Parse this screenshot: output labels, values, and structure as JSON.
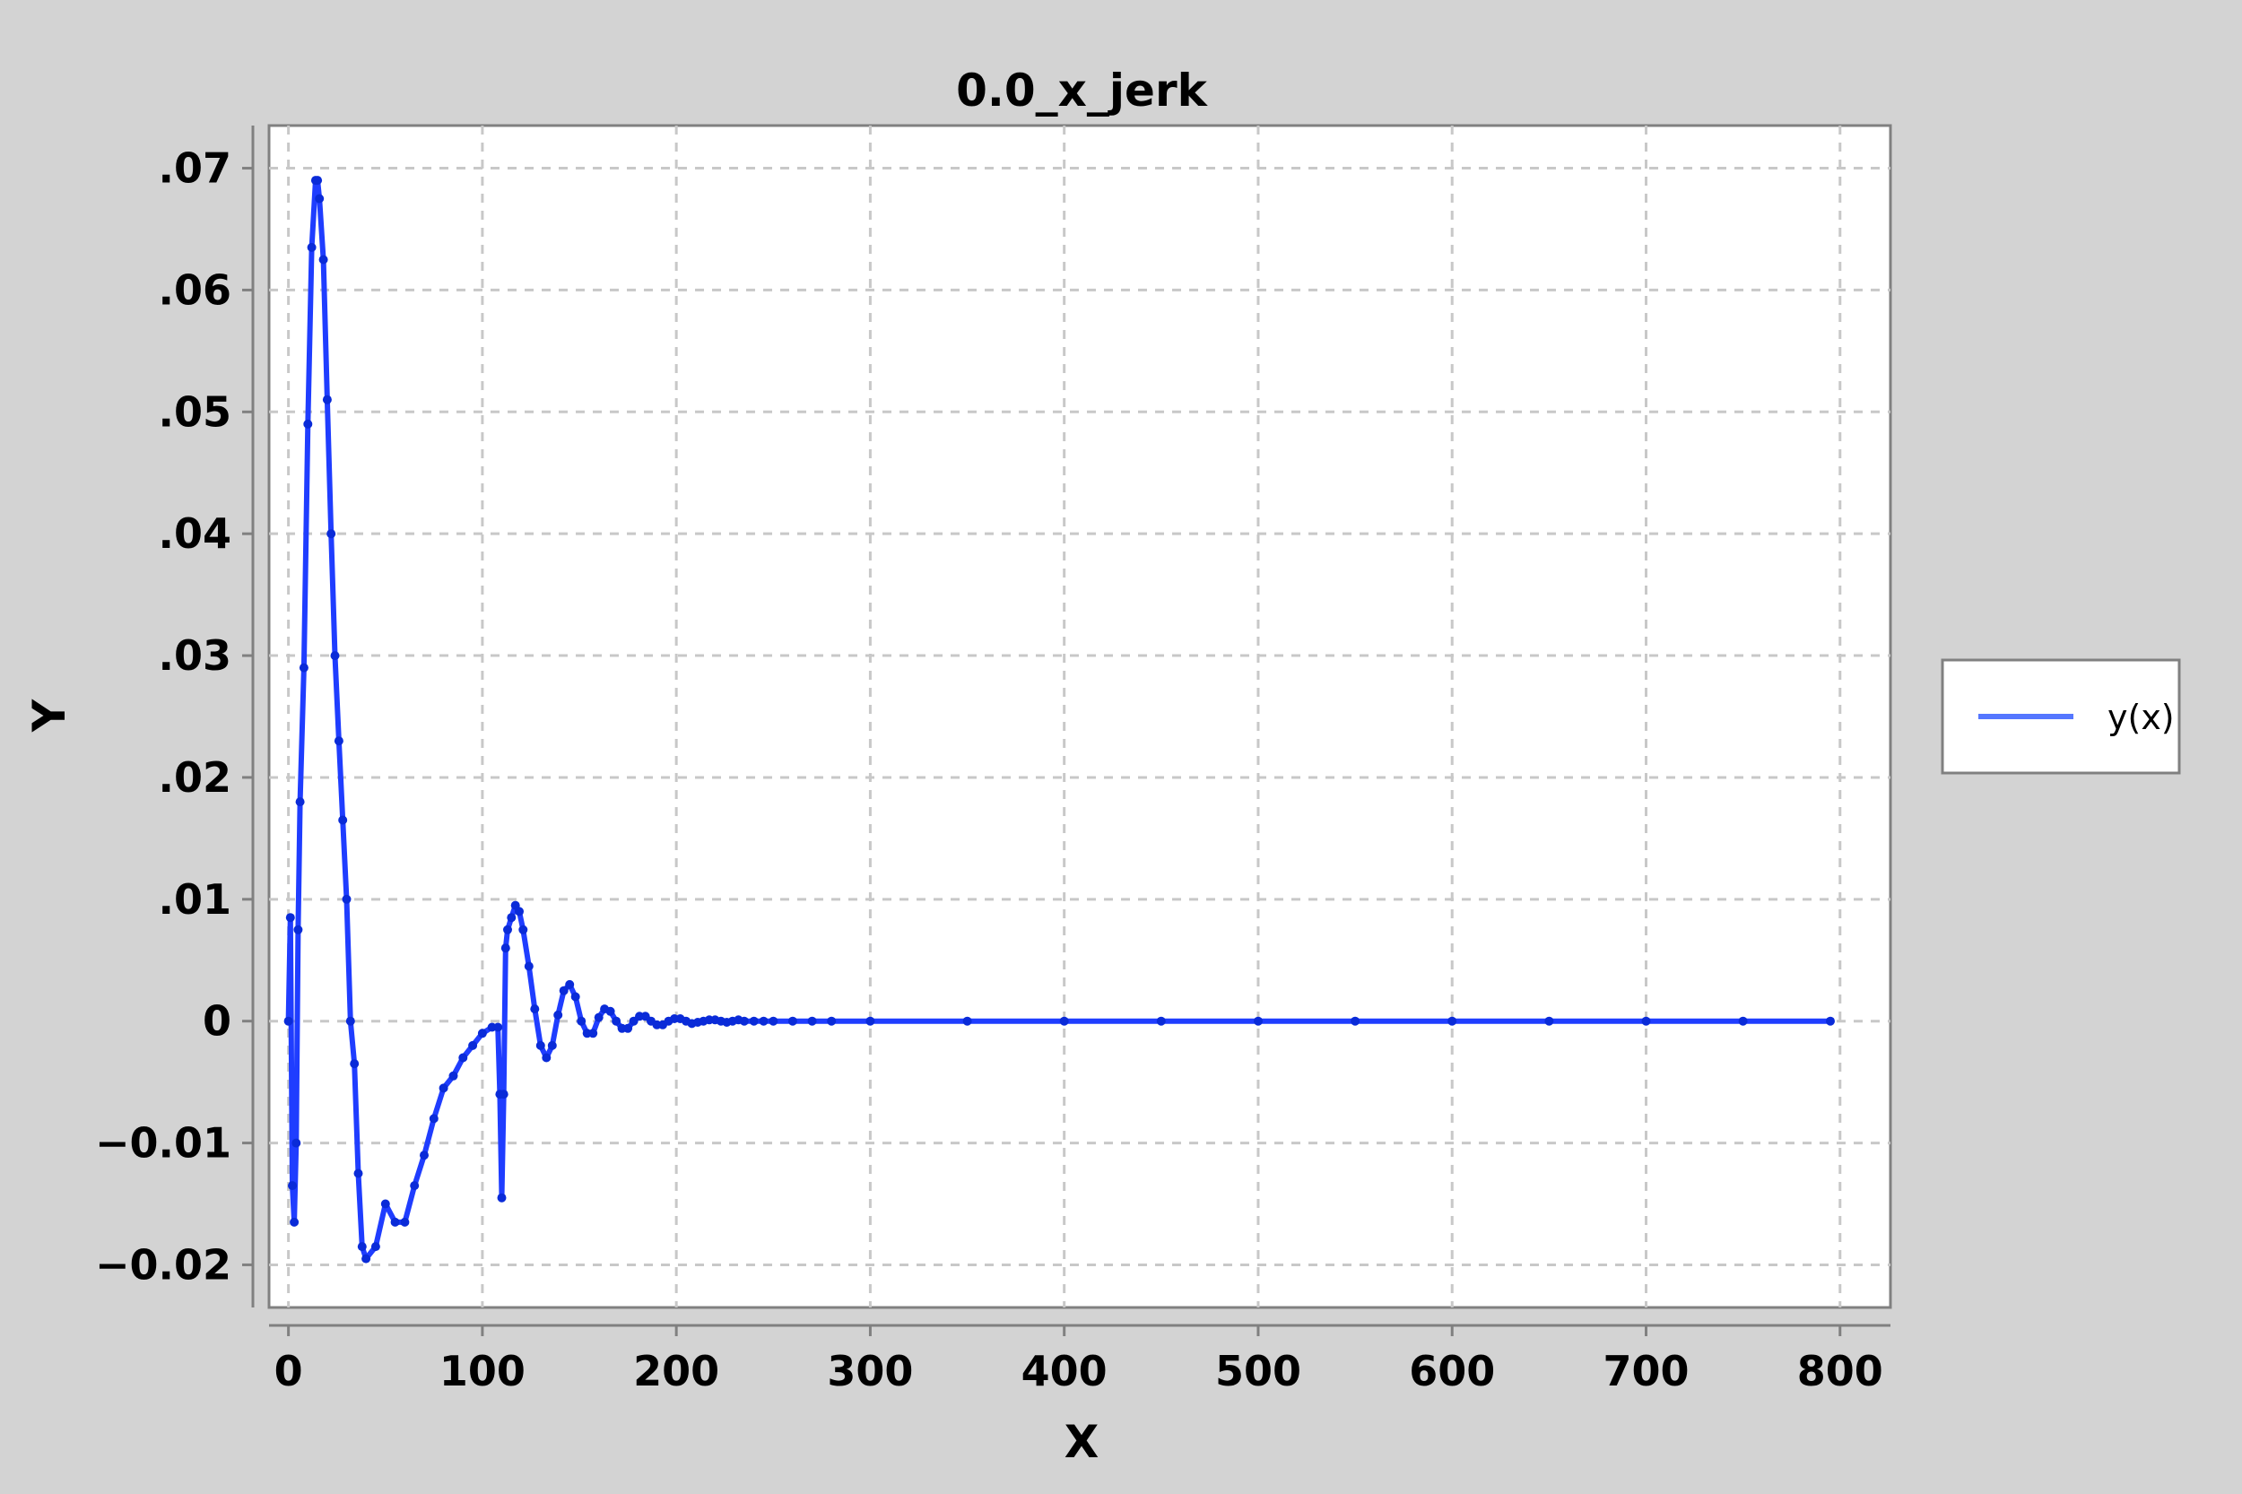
{
  "chart_data": {
    "type": "line",
    "title": "0.0_x_jerk",
    "xlabel": "X",
    "ylabel": "Y",
    "xlim": [
      -10,
      826
    ],
    "ylim": [
      -0.0235,
      0.0735
    ],
    "xticks": [
      0,
      100,
      200,
      300,
      400,
      500,
      600,
      700,
      800
    ],
    "xtick_labels": [
      "0",
      "100",
      "200",
      "300",
      "400",
      "500",
      "600",
      "700",
      "800"
    ],
    "yticks": [
      0.07,
      0.06,
      0.05,
      0.04,
      0.03,
      0.02,
      0.01,
      0,
      -0.01,
      -0.02
    ],
    "ytick_labels": [
      ".07",
      ".06",
      ".05",
      ".04",
      ".03",
      ".02",
      ".01",
      "0",
      "−0.01",
      "−0.02"
    ],
    "grid": true,
    "legend_position": "right",
    "colors": {
      "series": "#1f3dff",
      "legend_line": "#5577ff",
      "grid": "#c8c8c8",
      "frame": "#808080",
      "background": "#d3d3d3"
    },
    "series": [
      {
        "name": "y(x)",
        "x": [
          0,
          1,
          2,
          3,
          4,
          5,
          6,
          8,
          10,
          12,
          14,
          15,
          16,
          18,
          20,
          22,
          24,
          26,
          28,
          30,
          32,
          34,
          36,
          38,
          40,
          45,
          50,
          55,
          60,
          65,
          70,
          75,
          80,
          85,
          90,
          95,
          100,
          105,
          108,
          109,
          110,
          111,
          112,
          113,
          115,
          117,
          119,
          121,
          124,
          127,
          130,
          133,
          136,
          139,
          142,
          145,
          148,
          151,
          154,
          157,
          160,
          163,
          166,
          169,
          172,
          175,
          178,
          181,
          184,
          187,
          190,
          193,
          196,
          199,
          202,
          205,
          208,
          211,
          214,
          217,
          220,
          223,
          226,
          229,
          232,
          235,
          240,
          245,
          250,
          260,
          270,
          280,
          300,
          350,
          400,
          450,
          500,
          550,
          600,
          650,
          700,
          750,
          795
        ],
        "y": [
          0,
          0.0085,
          -0.0135,
          -0.0165,
          -0.01,
          0.0075,
          0.018,
          0.029,
          0.049,
          0.0635,
          0.069,
          0.069,
          0.0675,
          0.0625,
          0.051,
          0.04,
          0.03,
          0.023,
          0.0165,
          0.01,
          0,
          -0.0035,
          -0.0125,
          -0.0185,
          -0.0195,
          -0.0185,
          -0.015,
          -0.0165,
          -0.0165,
          -0.0135,
          -0.011,
          -0.008,
          -0.0055,
          -0.0045,
          -0.003,
          -0.002,
          -0.001,
          -0.0005,
          -0.0005,
          -0.006,
          -0.0145,
          -0.006,
          0.006,
          0.0075,
          0.0085,
          0.0095,
          0.009,
          0.0075,
          0.0045,
          0.001,
          -0.002,
          -0.003,
          -0.002,
          0.0005,
          0.0025,
          0.003,
          0.002,
          0.0,
          -0.001,
          -0.001,
          0.0003,
          0.001,
          0.0008,
          0.0,
          -0.0006,
          -0.0006,
          0.0,
          0.0004,
          0.0004,
          0.0,
          -0.0003,
          -0.0003,
          0.0,
          0.0002,
          0.0002,
          0.0,
          -0.0002,
          -0.0001,
          0.0,
          0.0001,
          0.0001,
          0.0,
          -0.0001,
          0.0,
          0.0001,
          0.0,
          0.0,
          0.0,
          0.0,
          0.0,
          0.0,
          0.0,
          0.0,
          0.0,
          0.0,
          0.0,
          0.0,
          0.0,
          0.0,
          0.0,
          0.0,
          0.0,
          0.0
        ]
      }
    ]
  }
}
